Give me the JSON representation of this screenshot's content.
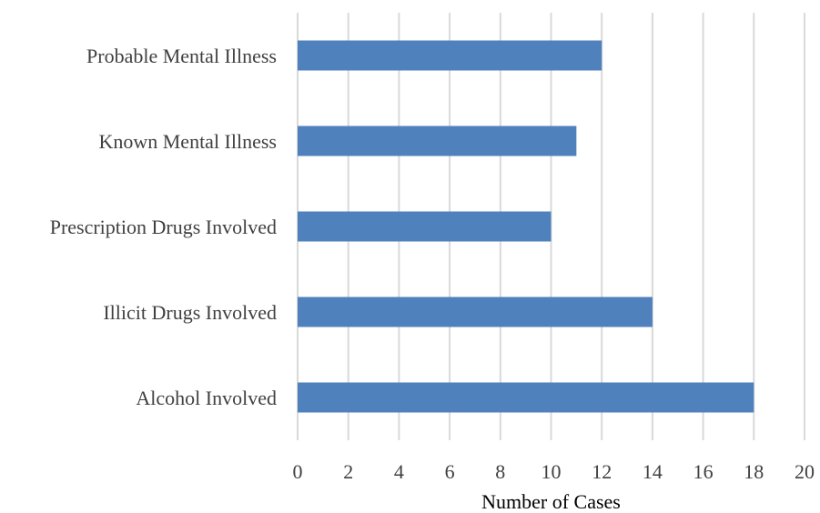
{
  "chart_data": {
    "type": "bar",
    "orientation": "horizontal",
    "categories": [
      "Probable Mental Illness",
      "Known Mental Illness",
      "Prescription Drugs Involved",
      "Illicit Drugs Involved",
      "Alcohol Involved"
    ],
    "values": [
      12,
      11,
      10,
      14,
      18
    ],
    "xlabel": "Number of Cases",
    "ylabel": "",
    "xlim": [
      0,
      20
    ],
    "xticks": [
      0,
      2,
      4,
      6,
      8,
      10,
      12,
      14,
      16,
      18,
      20
    ],
    "grid": "vertical",
    "legend": "none",
    "colors": {
      "bar": "#4f81bd",
      "grid": "#d9d9d9"
    }
  }
}
